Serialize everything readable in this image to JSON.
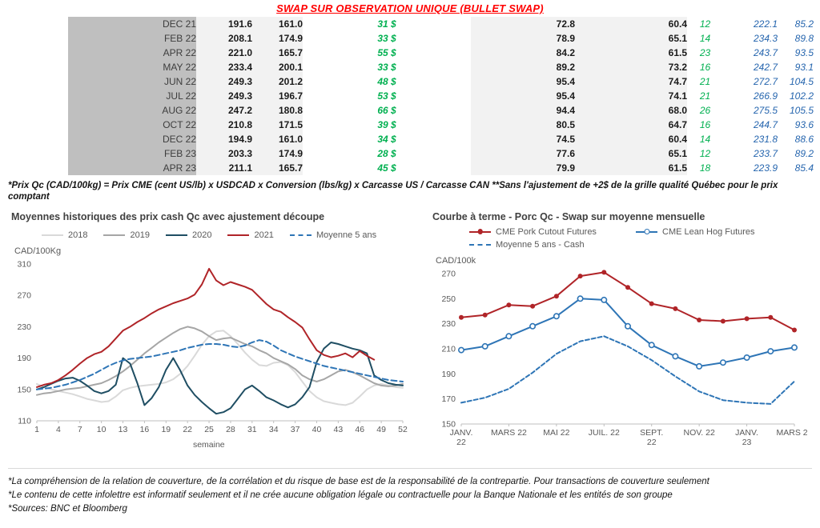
{
  "page": {
    "title": "SWAP SUR OBSERVATION UNIQUE (BULLET SWAP)",
    "table_footnote": "*Prix Qc (CAD/100kg) = Prix CME (cent US/lb) x USDCAD x Conversion (lbs/kg) x Carcasse US / Carcasse CAN **Sans l'ajustement de +2$ de la grille qualité Québec pour le prix comptant",
    "footnotes": [
      "*La compréhension de la relation de couverture, de la corrélation et du risque de base est de la responsabilité de la contrepartie. Pour transactions de couverture seulement",
      "*Le contenu de cette infolettre est informatif seulement et il ne crée aucune obligation légale ou contractuelle pour la Banque Nationale et les entités de son groupe",
      "*Sources: BNC et Bloomberg"
    ]
  },
  "colors": {
    "title_red": "#ff0000",
    "positive_green": "#00b050",
    "futures_blue": "#2565ae",
    "month_column_bg": "#bfbfbf",
    "band_bg": "#f2f2f2"
  },
  "table": {
    "rows": [
      {
        "month": "DEC 21",
        "values": [
          "191.6",
          "161.0",
          "31 $",
          "72.8",
          "60.4",
          "12",
          "222.1",
          "85.2"
        ]
      },
      {
        "month": "FEB 22",
        "values": [
          "208.1",
          "174.9",
          "33 $",
          "78.9",
          "65.1",
          "14",
          "234.3",
          "89.8"
        ]
      },
      {
        "month": "APR 22",
        "values": [
          "221.0",
          "165.7",
          "55 $",
          "84.2",
          "61.5",
          "23",
          "243.7",
          "93.5"
        ]
      },
      {
        "month": "MAY 22",
        "values": [
          "233.4",
          "200.1",
          "33 $",
          "89.2",
          "73.2",
          "16",
          "242.7",
          "93.1"
        ]
      },
      {
        "month": "JUN 22",
        "values": [
          "249.3",
          "201.2",
          "48 $",
          "95.4",
          "74.7",
          "21",
          "272.7",
          "104.5"
        ]
      },
      {
        "month": "JUL 22",
        "values": [
          "249.3",
          "196.7",
          "53 $",
          "95.4",
          "74.1",
          "21",
          "266.9",
          "102.2"
        ]
      },
      {
        "month": "AUG 22",
        "values": [
          "247.2",
          "180.8",
          "66 $",
          "94.4",
          "68.0",
          "26",
          "275.5",
          "105.5"
        ]
      },
      {
        "month": "OCT 22",
        "values": [
          "210.8",
          "171.5",
          "39 $",
          "80.5",
          "64.7",
          "16",
          "244.7",
          "93.6"
        ]
      },
      {
        "month": "DEC 22",
        "values": [
          "194.9",
          "161.0",
          "34 $",
          "74.5",
          "60.4",
          "14",
          "231.8",
          "88.6"
        ]
      },
      {
        "month": "FEB 23",
        "values": [
          "203.3",
          "174.9",
          "28 $",
          "77.6",
          "65.1",
          "12",
          "233.7",
          "89.2"
        ]
      },
      {
        "month": "APR 23",
        "values": [
          "211.1",
          "165.7",
          "45 $",
          "79.9",
          "61.5",
          "18",
          "223.9",
          "85.4"
        ]
      }
    ]
  },
  "chart_data": [
    {
      "type": "line",
      "title": "Moyennes historiques des prix cash Qc avec ajustement découpe",
      "ylabel": "CAD/100Kg",
      "xlabel": "semaine",
      "ylim": [
        110,
        310
      ],
      "yticks": [
        110,
        150,
        190,
        230,
        270,
        310
      ],
      "xlim": [
        1,
        52
      ],
      "x_start": 1,
      "xticks": [
        1,
        4,
        7,
        10,
        13,
        16,
        19,
        22,
        25,
        28,
        31,
        34,
        37,
        40,
        43,
        46,
        49,
        52
      ],
      "grid": false,
      "legend_position": "top",
      "series": [
        {
          "name": "2018",
          "color": "#d9d9d9",
          "values": [
            157,
            153,
            150,
            148,
            146,
            144,
            141,
            138,
            136,
            134,
            135,
            141,
            149,
            152,
            154,
            155,
            156,
            157,
            159,
            163,
            170,
            180,
            193,
            207,
            218,
            224,
            225,
            218,
            208,
            197,
            188,
            181,
            180,
            184,
            185,
            181,
            172,
            160,
            148,
            140,
            135,
            133,
            131,
            130,
            133,
            141,
            150,
            155,
            157,
            155,
            153,
            152
          ]
        },
        {
          "name": "2019",
          "color": "#a6a6a6",
          "values": [
            143,
            145,
            146,
            148,
            150,
            151,
            152,
            154,
            156,
            158,
            162,
            167,
            173,
            180,
            188,
            196,
            203,
            210,
            216,
            222,
            227,
            230,
            228,
            224,
            218,
            213,
            215,
            216,
            212,
            208,
            205,
            200,
            196,
            190,
            186,
            182,
            176,
            168,
            163,
            160,
            163,
            168,
            173,
            175,
            172,
            168,
            163,
            158,
            155,
            154,
            155,
            157
          ]
        },
        {
          "name": "2020",
          "color": "#1f4e63",
          "values": [
            150,
            153,
            157,
            161,
            164,
            165,
            161,
            155,
            148,
            145,
            148,
            156,
            190,
            183,
            158,
            130,
            139,
            153,
            175,
            190,
            174,
            155,
            143,
            134,
            126,
            119,
            121,
            126,
            138,
            150,
            155,
            148,
            140,
            136,
            131,
            127,
            131,
            140,
            153,
            185,
            202,
            210,
            208,
            205,
            202,
            200,
            196,
            168,
            162,
            158,
            156,
            155
          ]
        },
        {
          "name": "2021",
          "color": "#b02428",
          "values": [
            153,
            156,
            158,
            162,
            168,
            175,
            183,
            190,
            195,
            198,
            205,
            215,
            225,
            230,
            236,
            241,
            247,
            252,
            256,
            260,
            263,
            266,
            271,
            284,
            304,
            289,
            283,
            287,
            284,
            281,
            277,
            268,
            259,
            252,
            249,
            242,
            236,
            229,
            214,
            200,
            194,
            191,
            193,
            196,
            191,
            199,
            193,
            188
          ]
        },
        {
          "name": "Moyenne 5 ans",
          "color": "#2e75b6",
          "dash": "7,4",
          "values": [
            150,
            151,
            152,
            154,
            156,
            159,
            162,
            166,
            170,
            175,
            180,
            184,
            187,
            189,
            190,
            191,
            192,
            194,
            196,
            198,
            200,
            203,
            205,
            207,
            208,
            208,
            207,
            205,
            204,
            206,
            210,
            213,
            211,
            206,
            200,
            196,
            192,
            189,
            186,
            183,
            180,
            178,
            176,
            174,
            172,
            170,
            168,
            166,
            164,
            162,
            161,
            160
          ]
        }
      ]
    },
    {
      "type": "line",
      "title": "Courbe à terme - Porc Qc - Swap sur moyenne mensuelle",
      "ylabel": "CAD/100k",
      "xlabel": "",
      "ylim": [
        150,
        270
      ],
      "yticks": [
        150,
        170,
        190,
        210,
        230,
        250,
        270
      ],
      "xlim": [
        0,
        14
      ],
      "x_start": 0,
      "xticks": [
        {
          "v": 0,
          "label": "JANV.\n22"
        },
        {
          "v": 2,
          "label": "MARS 22"
        },
        {
          "v": 4,
          "label": "MAI 22"
        },
        {
          "v": 6,
          "label": "JUIL. 22"
        },
        {
          "v": 8,
          "label": "SEPT.\n22"
        },
        {
          "v": 10,
          "label": "NOV. 22"
        },
        {
          "v": 12,
          "label": "JANV.\n23"
        },
        {
          "v": 14,
          "label": "MARS 23"
        }
      ],
      "x_categories": [
        "JANV. 22",
        "FÉVR. 22",
        "MARS 22",
        "AVR. 22",
        "MAI 22",
        "JUIN 22",
        "JUIL. 22",
        "AOÛT 22",
        "SEPT. 22",
        "OCT. 22",
        "NOV. 22",
        "DÉC. 22",
        "JANV. 23",
        "FÉVR. 23",
        "MARS 23"
      ],
      "grid": false,
      "legend_position": "top",
      "series": [
        {
          "name": "CME Pork Cutout Futures",
          "color": "#b02428",
          "marker": "dot",
          "values": [
            235,
            237,
            245,
            244,
            252,
            268,
            271,
            259,
            246,
            242,
            233,
            232,
            234,
            235,
            225
          ]
        },
        {
          "name": "CME Lean Hog Futures",
          "color": "#2e75b6",
          "marker": "circle",
          "values": [
            209,
            212,
            220,
            228,
            236,
            250,
            249,
            228,
            213,
            204,
            196,
            199,
            203,
            208,
            211
          ]
        },
        {
          "name": "Moyenne 5 ans - Cash",
          "color": "#2e75b6",
          "dash": "5,3",
          "values": [
            167,
            171,
            178,
            191,
            206,
            216,
            220,
            212,
            201,
            188,
            176,
            169,
            167,
            166,
            184
          ]
        }
      ]
    }
  ]
}
